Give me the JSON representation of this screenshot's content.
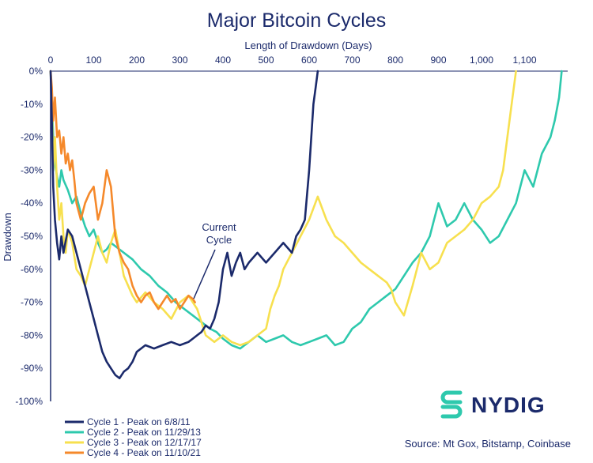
{
  "chart_data": {
    "type": "line",
    "title": "Major Bitcoin Cycles",
    "xlabel": "Length of Drawdown (Days)",
    "ylabel": "Drawdown",
    "xlim": [
      0,
      1200
    ],
    "ylim": [
      -100,
      0
    ],
    "x_ticks": [
      {
        "value": 0,
        "label": "0"
      },
      {
        "value": 100,
        "label": "100"
      },
      {
        "value": 200,
        "label": "200"
      },
      {
        "value": 300,
        "label": "300"
      },
      {
        "value": 400,
        "label": "400"
      },
      {
        "value": 500,
        "label": "500"
      },
      {
        "value": 600,
        "label": "600"
      },
      {
        "value": 700,
        "label": "700"
      },
      {
        "value": 800,
        "label": "800"
      },
      {
        "value": 900,
        "label": "900"
      },
      {
        "value": 1000,
        "label": "1,000"
      },
      {
        "value": 1100,
        "label": "1,100"
      }
    ],
    "y_ticks": [
      {
        "value": 0,
        "label": "0%"
      },
      {
        "value": -10,
        "label": "-10%"
      },
      {
        "value": -20,
        "label": "-20%"
      },
      {
        "value": -30,
        "label": "-30%"
      },
      {
        "value": -40,
        "label": "-40%"
      },
      {
        "value": -50,
        "label": "-50%"
      },
      {
        "value": -60,
        "label": "-60%"
      },
      {
        "value": -70,
        "label": "-70%"
      },
      {
        "value": -80,
        "label": "-80%"
      },
      {
        "value": -90,
        "label": "-90%"
      },
      {
        "value": -100,
        "label": "-100%"
      }
    ],
    "series": [
      {
        "name": "Cycle 2 - Peak on 11/29/13",
        "color": "#2ec9ad",
        "x": [
          0,
          3,
          6,
          10,
          15,
          20,
          25,
          30,
          40,
          50,
          60,
          70,
          80,
          90,
          100,
          110,
          120,
          130,
          140,
          150,
          170,
          190,
          210,
          230,
          250,
          270,
          290,
          310,
          330,
          350,
          370,
          385,
          400,
          420,
          440,
          460,
          480,
          500,
          520,
          540,
          560,
          580,
          600,
          620,
          640,
          660,
          680,
          700,
          720,
          740,
          760,
          780,
          800,
          820,
          840,
          860,
          880,
          890,
          900,
          920,
          940,
          960,
          980,
          1000,
          1020,
          1040,
          1060,
          1080,
          1100,
          1120,
          1140,
          1160,
          1170,
          1180,
          1186
        ],
        "values": [
          0,
          -8,
          -20,
          -28,
          -32,
          -35,
          -30,
          -33,
          -36,
          -40,
          -38,
          -43,
          -47,
          -50,
          -48,
          -52,
          -55,
          -54,
          -52,
          -53,
          -55,
          -57,
          -60,
          -62,
          -65,
          -67,
          -70,
          -72,
          -74,
          -76,
          -78,
          -79,
          -81,
          -83,
          -84,
          -82,
          -80,
          -82,
          -81,
          -80,
          -82,
          -83,
          -82,
          -81,
          -80,
          -83,
          -82,
          -78,
          -76,
          -72,
          -70,
          -68,
          -66,
          -62,
          -58,
          -55,
          -50,
          -45,
          -40,
          -47,
          -45,
          -40,
          -45,
          -48,
          -52,
          -50,
          -45,
          -40,
          -30,
          -35,
          -25,
          -20,
          -15,
          -8,
          0
        ]
      },
      {
        "name": "Cycle 3 - Peak on 12/17/17",
        "color": "#f7e04f",
        "x": [
          0,
          3,
          6,
          10,
          15,
          20,
          25,
          30,
          35,
          40,
          50,
          60,
          70,
          80,
          90,
          100,
          110,
          120,
          130,
          140,
          150,
          160,
          170,
          180,
          190,
          200,
          220,
          240,
          260,
          280,
          300,
          320,
          340,
          360,
          380,
          400,
          420,
          440,
          460,
          480,
          500,
          510,
          520,
          530,
          540,
          560,
          580,
          600,
          620,
          640,
          660,
          680,
          700,
          720,
          740,
          760,
          780,
          790,
          800,
          820,
          840,
          860,
          880,
          900,
          920,
          940,
          960,
          980,
          1000,
          1020,
          1040,
          1050,
          1060,
          1070,
          1080
        ],
        "values": [
          0,
          -10,
          -30,
          -20,
          -35,
          -45,
          -40,
          -50,
          -55,
          -48,
          -52,
          -60,
          -62,
          -65,
          -60,
          -55,
          -50,
          -55,
          -58,
          -52,
          -48,
          -55,
          -62,
          -65,
          -68,
          -70,
          -67,
          -70,
          -72,
          -75,
          -70,
          -68,
          -72,
          -80,
          -82,
          -80,
          -82,
          -83,
          -82,
          -80,
          -78,
          -72,
          -68,
          -65,
          -60,
          -55,
          -50,
          -45,
          -38,
          -45,
          -50,
          -52,
          -55,
          -58,
          -60,
          -62,
          -64,
          -66,
          -70,
          -74,
          -65,
          -55,
          -60,
          -58,
          -52,
          -50,
          -48,
          -45,
          -40,
          -38,
          -35,
          -30,
          -20,
          -10,
          0
        ]
      },
      {
        "name": "Cycle 4 - Peak on 11/10/21",
        "color": "#f5892b",
        "x": [
          0,
          3,
          6,
          10,
          15,
          20,
          25,
          30,
          35,
          40,
          45,
          50,
          55,
          60,
          70,
          80,
          90,
          100,
          110,
          120,
          130,
          140,
          150,
          160,
          170,
          180,
          190,
          200,
          210,
          220,
          230,
          240,
          250,
          260,
          270,
          280,
          290,
          300,
          310,
          320,
          330,
          335
        ],
        "values": [
          0,
          -5,
          -15,
          -8,
          -20,
          -18,
          -25,
          -20,
          -28,
          -25,
          -30,
          -27,
          -33,
          -40,
          -45,
          -40,
          -37,
          -35,
          -45,
          -40,
          -30,
          -35,
          -50,
          -55,
          -58,
          -60,
          -65,
          -68,
          -70,
          -68,
          -67,
          -70,
          -72,
          -70,
          -68,
          -70,
          -69,
          -72,
          -70,
          -68,
          -69,
          -70
        ]
      },
      {
        "name": "Cycle 1 - Peak on 6/8/11",
        "color": "#1b2a6b",
        "x": [
          0,
          3,
          6,
          10,
          15,
          20,
          25,
          30,
          40,
          50,
          60,
          70,
          80,
          90,
          100,
          110,
          120,
          130,
          140,
          150,
          160,
          170,
          180,
          190,
          200,
          220,
          240,
          260,
          280,
          300,
          320,
          330,
          340,
          350,
          360,
          370,
          380,
          390,
          400,
          410,
          420,
          430,
          440,
          450,
          460,
          480,
          500,
          520,
          540,
          560,
          570,
          580,
          590,
          600,
          605,
          610,
          615,
          620
        ],
        "values": [
          0,
          -15,
          -35,
          -45,
          -52,
          -57,
          -50,
          -55,
          -48,
          -50,
          -55,
          -60,
          -65,
          -70,
          -75,
          -80,
          -85,
          -88,
          -90,
          -92,
          -93,
          -91,
          -90,
          -88,
          -85,
          -83,
          -84,
          -83,
          -82,
          -83,
          -82,
          -81,
          -80,
          -79,
          -77,
          -78,
          -75,
          -70,
          -60,
          -55,
          -62,
          -58,
          -55,
          -60,
          -58,
          -55,
          -58,
          -55,
          -52,
          -55,
          -50,
          -48,
          -45,
          -30,
          -20,
          -10,
          -5,
          0
        ]
      }
    ],
    "annotations": [
      {
        "text": "Current",
        "x": 330,
        "y": -47
      },
      {
        "text": "Cycle",
        "x": 330,
        "y": -51
      }
    ]
  },
  "source": "Source: Mt Gox, Bitstamp, Coinbase",
  "brand": {
    "name": "NYDIG",
    "color": "#2ec9ad"
  }
}
